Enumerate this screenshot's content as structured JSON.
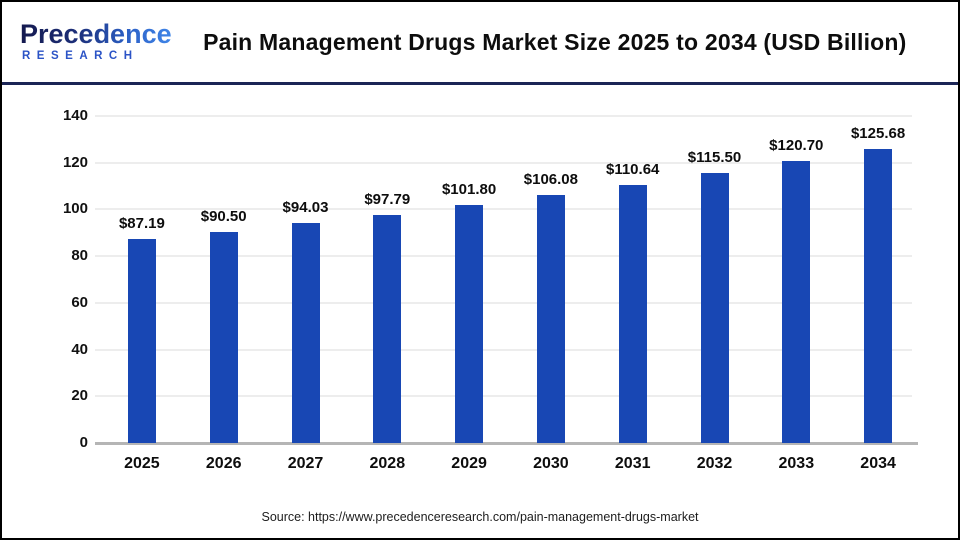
{
  "logo": {
    "brand": "Precedence",
    "subtext": "RESEARCH"
  },
  "header": {
    "title": "Pain Management Drugs Market Size 2025 to 2034 (USD Billion)"
  },
  "footer": {
    "source": "Source: https://www.precedenceresearch.com/pain-management-drugs-market"
  },
  "colors": {
    "bar": "#1847B4",
    "divider": "#1B2556",
    "gridline": "#EDEDED",
    "axis_line": "#B5B5B5",
    "logo_navy": "#14194E",
    "logo_blue": "#3F85E8",
    "research_blue": "#2B53C6",
    "text": "#0D0D0D"
  },
  "chart_data": {
    "type": "bar",
    "title": "Pain Management Drugs Market Size 2025 to 2034 (USD Billion)",
    "unit": "USD Billion",
    "categories": [
      "2025",
      "2026",
      "2027",
      "2028",
      "2029",
      "2030",
      "2031",
      "2032",
      "2033",
      "2034"
    ],
    "values": [
      87.19,
      90.5,
      94.03,
      97.79,
      101.8,
      106.08,
      110.64,
      115.5,
      120.7,
      125.68
    ],
    "value_labels": [
      "$87.19",
      "$90.50",
      "$94.03",
      "$97.79",
      "$101.80",
      "$106.08",
      "$110.64",
      "$115.50",
      "$120.70",
      "$125.68"
    ],
    "xlabel": "",
    "ylabel": "",
    "ylim": [
      0,
      140
    ],
    "yticks": [
      0,
      20,
      40,
      60,
      80,
      100,
      120,
      140
    ],
    "grid": true,
    "legend": false,
    "bar_color": "#1847B4"
  }
}
